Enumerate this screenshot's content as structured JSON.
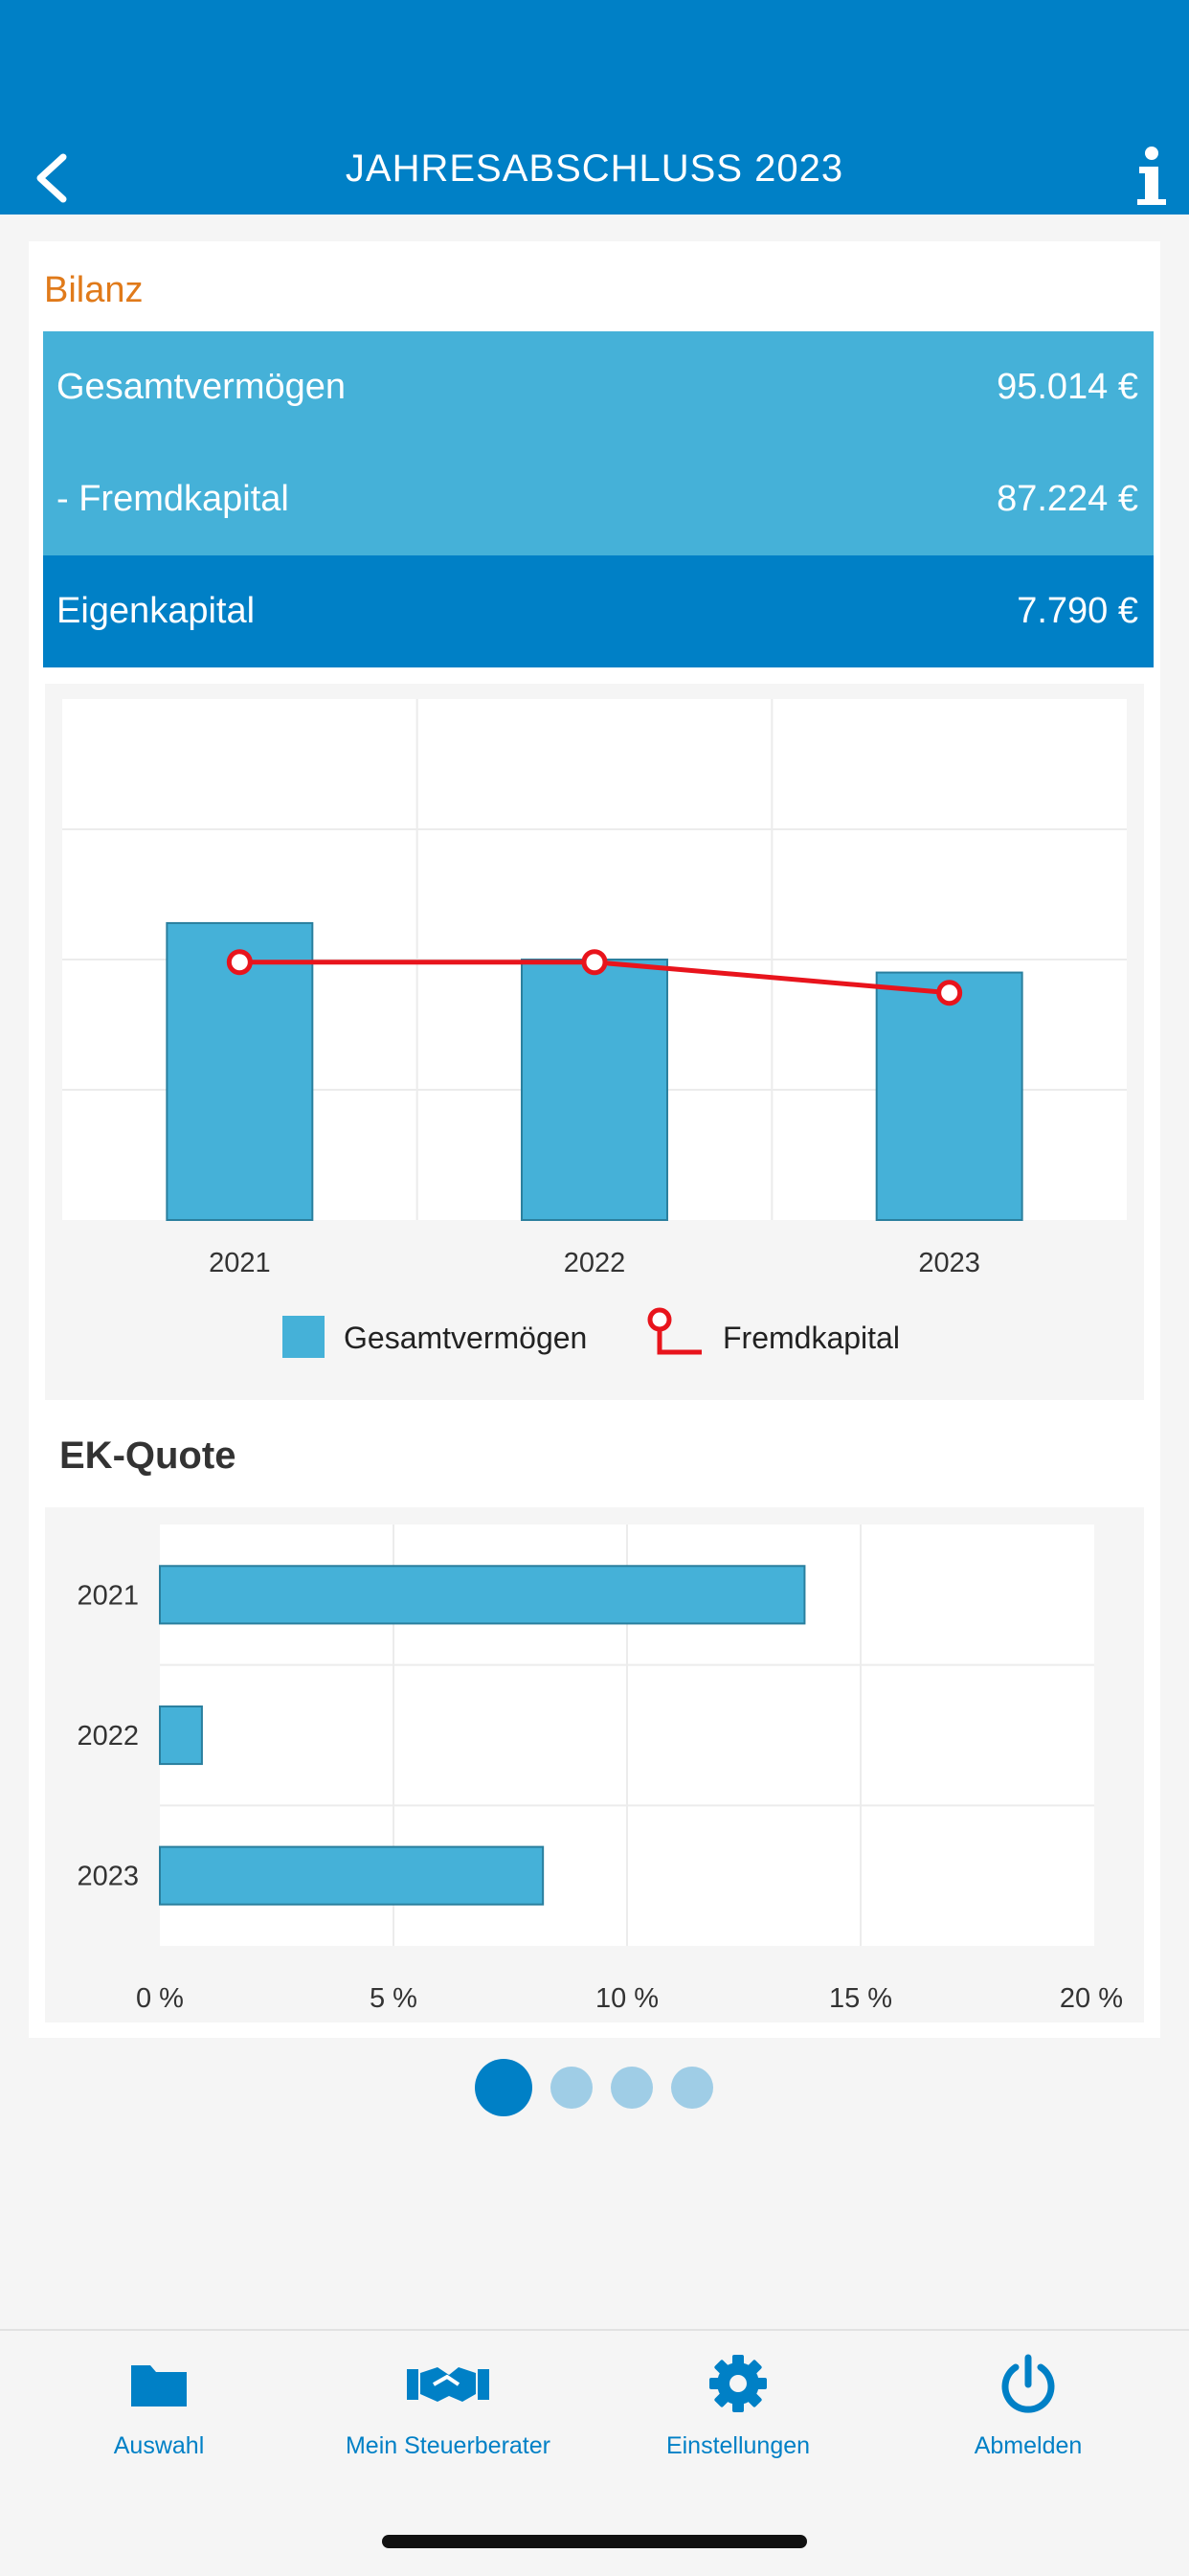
{
  "header": {
    "title": "JAHRESABSCHLUSS 2023"
  },
  "bilanz": {
    "title": "Bilanz",
    "rows": [
      {
        "label": "Gesamtvermögen",
        "value": "95.014 €"
      },
      {
        "label": "- Fremdkapital",
        "value": "87.224 €"
      },
      {
        "label": "Eigenkapital",
        "value": "7.790 €"
      }
    ]
  },
  "chart_data": [
    {
      "type": "bar",
      "categories": [
        "2021",
        "2022",
        "2023"
      ],
      "series": [
        {
          "name": "Gesamtvermögen",
          "type": "bar",
          "values": [
            114000,
            100000,
            95014
          ],
          "color": "#45b1d8"
        },
        {
          "name": "Fremdkapital",
          "type": "line",
          "values": [
            99000,
            99000,
            87224
          ],
          "color": "#e8141c"
        }
      ],
      "ylim": [
        0,
        200000
      ],
      "grid": true,
      "legend": "bottom"
    },
    {
      "type": "bar",
      "orientation": "horizontal",
      "title": "EK-Quote",
      "categories": [
        "2021",
        "2022",
        "2023"
      ],
      "values": [
        13.8,
        0.9,
        8.2
      ],
      "xlim": [
        0,
        20
      ],
      "xticks": [
        "0 %",
        "5 %",
        "10 %",
        "15 %",
        "20 %"
      ],
      "color": "#45b1d8",
      "grid": true
    }
  ],
  "pagination": {
    "total": 4,
    "active": 0
  },
  "tabs": [
    {
      "label": "Auswahl",
      "icon": "folder-icon"
    },
    {
      "label": "Mein Steuerberater",
      "icon": "handshake-icon"
    },
    {
      "label": "Einstellungen",
      "icon": "gear-icon"
    },
    {
      "label": "Abmelden",
      "icon": "power-icon"
    }
  ],
  "colors": {
    "primary": "#0080c6",
    "light": "#45b1d8",
    "accent": "#e07a1a",
    "line": "#e8141c"
  }
}
